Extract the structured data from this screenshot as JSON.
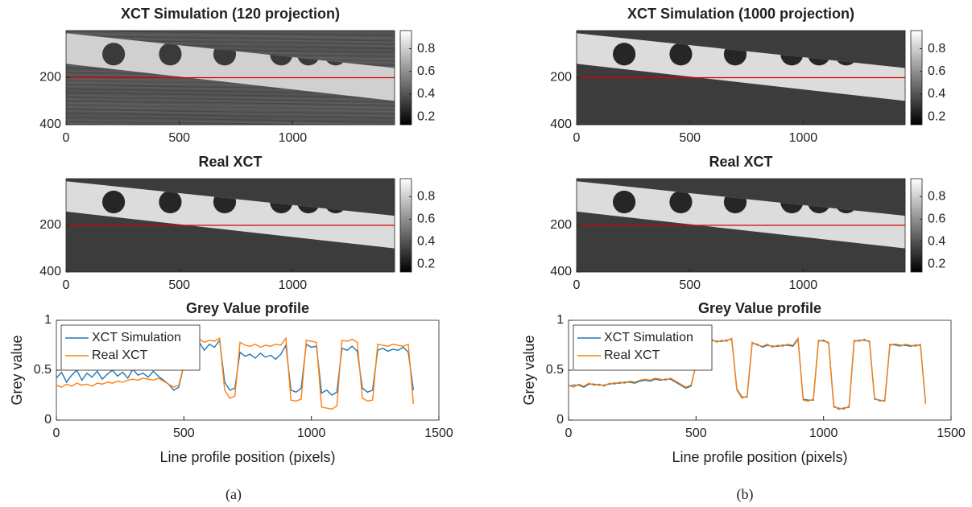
{
  "chart_data": [
    {
      "type": "image",
      "title": "XCT Simulation (120 projection)",
      "style": "noisy",
      "xlim": [
        0,
        1450
      ],
      "xticks": [
        0,
        500,
        1000
      ],
      "ylim": [
        400,
        0
      ],
      "yticks": [
        200,
        400
      ],
      "clim": [
        0.13,
        0.96
      ],
      "cticks": [
        0.2,
        0.4,
        0.6,
        0.8
      ],
      "profile_line": 200,
      "profile_color": "#e00000"
    },
    {
      "type": "image",
      "title": "Real XCT",
      "style": "clean",
      "xlim": [
        0,
        1450
      ],
      "xticks": [
        0,
        500,
        1000
      ],
      "ylim": [
        400,
        0
      ],
      "yticks": [
        200,
        400
      ],
      "clim": [
        0.13,
        0.96
      ],
      "cticks": [
        0.2,
        0.4,
        0.6,
        0.8
      ],
      "profile_line": 200,
      "profile_color": "#e00000"
    },
    {
      "type": "line",
      "title": "Grey Value profile",
      "xlabel": "Line profile position (pixels)",
      "ylabel": "Grey value",
      "xlim": [
        0,
        1500
      ],
      "xticks": [
        0,
        500,
        1000,
        1500
      ],
      "ylim": [
        0,
        1
      ],
      "yticks": [
        0,
        0.5,
        1
      ],
      "legend": "upper left",
      "x": [
        0,
        20,
        40,
        60,
        80,
        100,
        120,
        140,
        160,
        180,
        200,
        220,
        240,
        260,
        280,
        300,
        320,
        340,
        360,
        380,
        400,
        420,
        440,
        460,
        480,
        500,
        520,
        540,
        560,
        580,
        600,
        620,
        640,
        660,
        680,
        700,
        720,
        740,
        760,
        780,
        800,
        820,
        840,
        860,
        880,
        900,
        920,
        940,
        960,
        980,
        1000,
        1020,
        1040,
        1060,
        1080,
        1100,
        1120,
        1140,
        1160,
        1180,
        1200,
        1220,
        1240,
        1260,
        1280,
        1300,
        1320,
        1340,
        1360,
        1380,
        1400
      ],
      "series": [
        {
          "name": "XCT Simulation",
          "color": "#1f77b4",
          "values": [
            0.42,
            0.48,
            0.38,
            0.45,
            0.5,
            0.4,
            0.47,
            0.43,
            0.49,
            0.41,
            0.46,
            0.5,
            0.44,
            0.48,
            0.42,
            0.51,
            0.45,
            0.47,
            0.43,
            0.49,
            0.44,
            0.4,
            0.36,
            0.3,
            0.33,
            0.55,
            0.75,
            0.72,
            0.78,
            0.7,
            0.76,
            0.73,
            0.8,
            0.38,
            0.3,
            0.32,
            0.68,
            0.64,
            0.66,
            0.62,
            0.67,
            0.63,
            0.65,
            0.61,
            0.66,
            0.75,
            0.3,
            0.28,
            0.32,
            0.76,
            0.73,
            0.74,
            0.27,
            0.3,
            0.25,
            0.28,
            0.72,
            0.7,
            0.74,
            0.69,
            0.32,
            0.28,
            0.3,
            0.7,
            0.72,
            0.69,
            0.71,
            0.7,
            0.73,
            0.68,
            0.3
          ]
        },
        {
          "name": "Real XCT",
          "color": "#ff7f0e",
          "values": [
            0.35,
            0.33,
            0.36,
            0.34,
            0.37,
            0.35,
            0.36,
            0.34,
            0.37,
            0.36,
            0.38,
            0.37,
            0.39,
            0.38,
            0.4,
            0.41,
            0.4,
            0.42,
            0.41,
            0.4,
            0.42,
            0.39,
            0.36,
            0.33,
            0.35,
            0.55,
            0.8,
            0.79,
            0.81,
            0.78,
            0.8,
            0.79,
            0.82,
            0.3,
            0.22,
            0.24,
            0.78,
            0.75,
            0.74,
            0.76,
            0.73,
            0.75,
            0.74,
            0.76,
            0.75,
            0.82,
            0.2,
            0.19,
            0.21,
            0.8,
            0.79,
            0.78,
            0.13,
            0.12,
            0.11,
            0.14,
            0.8,
            0.79,
            0.81,
            0.78,
            0.22,
            0.19,
            0.2,
            0.76,
            0.75,
            0.74,
            0.76,
            0.75,
            0.74,
            0.76,
            0.16
          ]
        }
      ]
    },
    {
      "type": "image",
      "title": "XCT Simulation (1000 projection)",
      "style": "clean",
      "xlim": [
        0,
        1450
      ],
      "xticks": [
        0,
        500,
        1000
      ],
      "ylim": [
        400,
        0
      ],
      "yticks": [
        200,
        400
      ],
      "clim": [
        0.13,
        0.96
      ],
      "cticks": [
        0.2,
        0.4,
        0.6,
        0.8
      ],
      "profile_line": 200,
      "profile_color": "#e00000"
    },
    {
      "type": "image",
      "title": "Real XCT",
      "style": "clean",
      "xlim": [
        0,
        1450
      ],
      "xticks": [
        0,
        500,
        1000
      ],
      "ylim": [
        400,
        0
      ],
      "yticks": [
        200,
        400
      ],
      "clim": [
        0.13,
        0.96
      ],
      "cticks": [
        0.2,
        0.4,
        0.6,
        0.8
      ],
      "profile_line": 200,
      "profile_color": "#e00000"
    },
    {
      "type": "line",
      "title": "Grey Value profile",
      "xlabel": "Line profile position (pixels)",
      "ylabel": "Grey value",
      "xlim": [
        0,
        1500
      ],
      "xticks": [
        0,
        500,
        1000,
        1500
      ],
      "ylim": [
        0,
        1
      ],
      "yticks": [
        0,
        0.5,
        1
      ],
      "legend": "upper left",
      "x": [
        0,
        20,
        40,
        60,
        80,
        100,
        120,
        140,
        160,
        180,
        200,
        220,
        240,
        260,
        280,
        300,
        320,
        340,
        360,
        380,
        400,
        420,
        440,
        460,
        480,
        500,
        520,
        540,
        560,
        580,
        600,
        620,
        640,
        660,
        680,
        700,
        720,
        740,
        760,
        780,
        800,
        820,
        840,
        860,
        880,
        900,
        920,
        940,
        960,
        980,
        1000,
        1020,
        1040,
        1060,
        1080,
        1100,
        1120,
        1140,
        1160,
        1180,
        1200,
        1220,
        1240,
        1260,
        1280,
        1300,
        1320,
        1340,
        1360,
        1380,
        1400
      ],
      "series": [
        {
          "name": "XCT Simulation",
          "color": "#1f77b4",
          "values": [
            0.34,
            0.35,
            0.35,
            0.33,
            0.36,
            0.36,
            0.35,
            0.35,
            0.36,
            0.37,
            0.37,
            0.38,
            0.38,
            0.37,
            0.39,
            0.4,
            0.39,
            0.41,
            0.4,
            0.41,
            0.41,
            0.38,
            0.35,
            0.32,
            0.34,
            0.56,
            0.79,
            0.8,
            0.8,
            0.79,
            0.79,
            0.8,
            0.81,
            0.31,
            0.23,
            0.23,
            0.77,
            0.76,
            0.73,
            0.75,
            0.74,
            0.74,
            0.75,
            0.75,
            0.74,
            0.81,
            0.21,
            0.2,
            0.2,
            0.79,
            0.8,
            0.77,
            0.14,
            0.11,
            0.12,
            0.13,
            0.79,
            0.8,
            0.8,
            0.79,
            0.21,
            0.2,
            0.19,
            0.75,
            0.76,
            0.75,
            0.75,
            0.74,
            0.75,
            0.75,
            0.17
          ]
        },
        {
          "name": "Real XCT",
          "color": "#ff7f0e",
          "values": [
            0.35,
            0.33,
            0.36,
            0.34,
            0.37,
            0.35,
            0.36,
            0.34,
            0.37,
            0.36,
            0.38,
            0.37,
            0.39,
            0.38,
            0.4,
            0.41,
            0.4,
            0.42,
            0.41,
            0.4,
            0.42,
            0.39,
            0.36,
            0.33,
            0.35,
            0.55,
            0.8,
            0.79,
            0.81,
            0.78,
            0.8,
            0.79,
            0.82,
            0.3,
            0.22,
            0.24,
            0.78,
            0.75,
            0.74,
            0.76,
            0.73,
            0.75,
            0.74,
            0.76,
            0.75,
            0.82,
            0.2,
            0.19,
            0.21,
            0.8,
            0.79,
            0.78,
            0.13,
            0.12,
            0.11,
            0.14,
            0.8,
            0.79,
            0.81,
            0.78,
            0.22,
            0.19,
            0.2,
            0.76,
            0.75,
            0.74,
            0.76,
            0.75,
            0.74,
            0.76,
            0.16
          ]
        }
      ]
    }
  ],
  "captions": [
    "(a)",
    "(b)"
  ]
}
